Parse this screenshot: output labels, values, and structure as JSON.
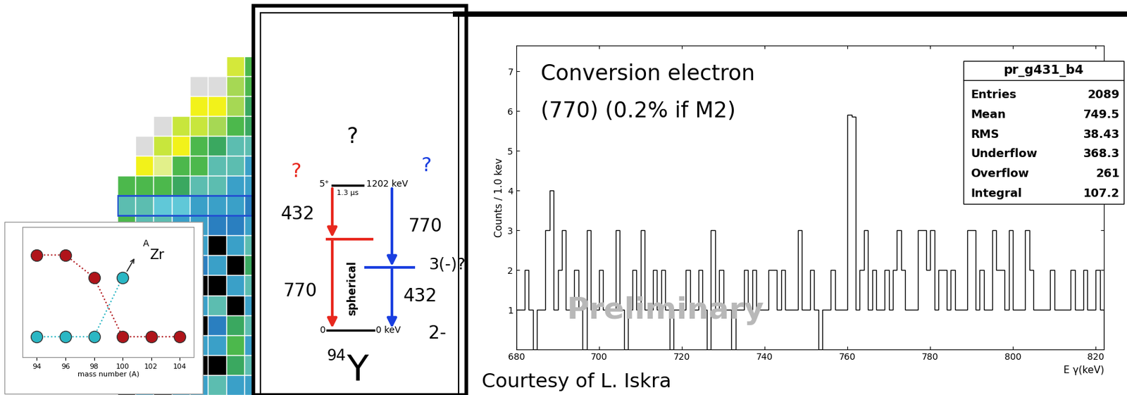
{
  "chart_data": [
    {
      "type": "histogram",
      "y_label": "Counts / 1.0 kev",
      "x_label": "E γ(keV)",
      "color": "#000000",
      "bins": [
        680,
        681,
        682,
        683,
        684,
        685,
        686,
        687,
        688,
        689,
        690,
        691,
        692,
        693,
        694,
        695,
        696,
        697,
        698,
        699,
        700,
        701,
        702,
        703,
        704,
        705,
        706,
        707,
        708,
        709,
        710,
        711,
        712,
        713,
        714,
        715,
        716,
        717,
        718,
        719,
        720,
        721,
        722,
        723,
        724,
        725,
        726,
        727,
        728,
        729,
        730,
        731,
        732,
        733,
        734,
        735,
        736,
        737,
        738,
        739,
        740,
        741,
        742,
        743,
        744,
        745,
        746,
        747,
        748,
        749,
        750,
        751,
        752,
        753,
        754,
        755,
        756,
        757,
        758,
        759,
        760,
        761,
        762,
        763,
        764,
        765,
        766,
        767,
        768,
        769,
        770,
        771,
        772,
        773,
        774,
        775,
        776,
        777,
        778,
        779,
        780,
        781,
        782,
        783,
        784,
        785,
        786,
        787,
        788,
        789,
        790,
        791,
        792,
        793,
        794,
        795,
        796,
        797,
        798,
        799,
        800,
        801,
        802,
        803,
        804,
        805,
        806,
        807,
        808,
        809,
        810,
        811,
        812,
        813,
        814,
        815,
        816,
        817,
        818,
        819,
        820,
        821,
        822
      ],
      "counts": [
        1,
        1,
        2,
        1,
        0,
        1,
        1,
        3,
        4,
        1,
        2,
        3,
        1,
        1,
        2,
        1,
        0,
        3,
        1,
        1,
        2,
        1,
        1,
        1,
        3,
        1,
        0,
        1,
        2,
        1,
        3,
        1,
        1,
        2,
        1,
        2,
        1,
        0,
        1,
        1,
        1,
        2,
        1,
        1,
        2,
        1,
        0,
        3,
        1,
        2,
        1,
        1,
        0,
        1,
        1,
        2,
        1,
        2,
        1,
        1,
        1,
        2,
        2,
        1,
        2,
        1,
        1,
        1,
        3,
        1,
        1,
        2,
        1,
        0,
        1,
        1,
        2,
        1,
        1,
        1,
        5.9,
        5.85,
        1,
        2,
        3,
        1,
        2,
        1,
        1,
        2,
        1,
        2,
        3,
        2,
        1,
        1,
        1,
        3,
        3,
        2,
        3,
        1,
        2,
        2,
        1,
        2,
        1,
        1,
        1,
        3,
        3,
        1,
        2,
        1,
        1,
        3,
        2,
        2,
        1,
        3,
        1,
        1,
        1,
        3,
        2,
        1,
        1,
        1,
        1,
        2,
        1,
        1,
        1,
        1,
        2,
        1,
        1,
        2,
        1,
        1,
        2,
        1
      ],
      "xlim": [
        680,
        822
      ],
      "ylim": [
        0,
        7.65
      ],
      "xticks": [
        680,
        700,
        720,
        740,
        760,
        780,
        800,
        820
      ],
      "yticks": [
        1,
        2,
        3,
        4,
        5,
        6,
        7
      ],
      "grid": false,
      "annotation": [
        "Conversion electron",
        "(770) (0.2% if M2)"
      ],
      "watermark": "Preliminary",
      "stats_box": {
        "title": "pr_g431_b4",
        "rows": [
          {
            "name": "Entries",
            "value": 2089
          },
          {
            "name": "Mean",
            "value": 749.5
          },
          {
            "name": "RMS",
            "value": 38.43
          },
          {
            "name": "Underflow",
            "value": 368.3
          },
          {
            "name": "Overflow",
            "value": 261
          },
          {
            "name": "Integral",
            "value": 107.2
          }
        ]
      }
    },
    {
      "type": "scatter",
      "x_label": "mass number (A)",
      "x": [
        94,
        96,
        98,
        100,
        102,
        104
      ],
      "series": [
        {
          "color": "#b0141a",
          "marker": "o",
          "line_style": "dotted",
          "values": [
            1.38,
            1.38,
            1.0,
            0.0,
            0.0,
            0.0
          ]
        },
        {
          "color": "#2ab7c4",
          "marker": "o",
          "line_style": "dotted",
          "values": [
            0.0,
            0.0,
            0.0,
            1.0,
            null,
            null
          ]
        }
      ],
      "xlim": [
        93,
        105
      ],
      "xticks": [
        94,
        96,
        98,
        100,
        102,
        104
      ],
      "ylim": [
        -0.35,
        1.85
      ],
      "yticks": [],
      "tick_labels": "x",
      "label": {
        "mass": "A",
        "element": "Zr"
      }
    }
  ],
  "level_scheme": {
    "top_question": "?",
    "top_level": {
      "spin": "5⁺",
      "half_life": "1.3 μs",
      "energy": "1202 keV"
    },
    "intermediate_spin": "3(-)?",
    "ground_level": {
      "energy": "0",
      "energy_label": "0 keV",
      "spin": "2-"
    },
    "branch_red": {
      "mark": "?",
      "upper": "432",
      "lower": "770"
    },
    "branch_blue": {
      "mark": "?",
      "upper": "770",
      "lower": "432"
    },
    "shape_label": "spherical",
    "nucleus": {
      "mass": "94",
      "element": "Y"
    }
  },
  "nuclide_chart": {
    "cells": [
      [
        null,
        null,
        null,
        null,
        null,
        null,
        "#d4e83a",
        "#4cb84c"
      ],
      [
        null,
        null,
        null,
        null,
        "#dcdcdc",
        "#dcdcdc",
        "#a6d854",
        "#4cb84c"
      ],
      [
        null,
        null,
        null,
        null,
        "#f2f21a",
        "#f2f21a",
        "#a6d854",
        "#3aa860"
      ],
      [
        null,
        null,
        "#dcdcdc",
        "#c8e63c",
        "#c8e63c",
        "#a6d854",
        "#4cb84c",
        "#3aa860"
      ],
      [
        null,
        "#dcdcdc",
        "#c8e63c",
        "#f2f21a",
        "#4cb84c",
        "#3aa860",
        "#5cbdb0",
        "#5cbdb0"
      ],
      [
        null,
        "#f2f21a",
        "#e2f08a",
        "#4cb84c",
        "#4cb84c",
        "#5cbdb0",
        "#5cbdb0",
        "#3aa0c8"
      ],
      [
        "#4cb84c",
        "#4cb84c",
        "#4cb84c",
        "#3aa860",
        "#5cbdb0",
        "#5cbdb0",
        "#3aa0c8",
        "#3aa0c8"
      ],
      [
        "#5cbdb0",
        "#5cbdb0",
        "#60c8d8",
        "#60c8d8",
        "#3aa0c8",
        "#3aa0c8",
        "#3aa0c8",
        "#2a7fc0"
      ],
      [
        "#4cb84c",
        "#5cbdb0",
        "#5cbdb0",
        "#3aa0c8",
        "#3aa0c8",
        "#2a7fc0",
        "#2a7fc0",
        "#3aa0c8"
      ],
      [
        "#5cbdb0",
        "#3aa0c8",
        "#3aa0c8",
        "#2a7fc0",
        "#3aa0c8",
        "#000000",
        "#3aa0c8",
        "#5cbdb0"
      ],
      [
        "#3aa0c8",
        "#3aa0c8",
        "#2a7fc0",
        "#000000",
        "#2a7fc0",
        "#3aa0c8",
        "#000000",
        "#3aa860"
      ],
      [
        "#2a7fc0",
        "#000000",
        "#3aa0c8",
        "#3aa0c8",
        "#000000",
        "#000000",
        "#3aa0c8",
        "#5cbdb0"
      ],
      [
        "#000000",
        "#3aa0c8",
        "#000000",
        "#2a7fc0",
        "#3aa0c8",
        "#5cbdb0",
        "#000000",
        "#3aa0c8"
      ],
      [
        "#3aa0c8",
        "#000000",
        "#3aa0c8",
        "#000000",
        "#000000",
        "#2a7fc0",
        "#3aa860",
        "#5cbdb0"
      ],
      [
        "#000000",
        "#3aa0c8",
        "#000000",
        "#3aa0c8",
        "#3aa0c8",
        "#3aa0c8",
        "#4cb84c",
        "#3aa0c8"
      ],
      [
        "#3aa0c8",
        "#000000",
        "#3aa0c8",
        "#000000",
        "#000000",
        "#000000",
        "#3aa860",
        "#5cbdb0"
      ],
      [
        "#000000",
        "#3aa0c8",
        "#000000",
        "#3aa0c8",
        "#3aa0c8",
        "#5cbdb0",
        "#3aa0c8",
        "#3aa0c8"
      ]
    ]
  },
  "credit": "Courtesy of L. Iskra"
}
